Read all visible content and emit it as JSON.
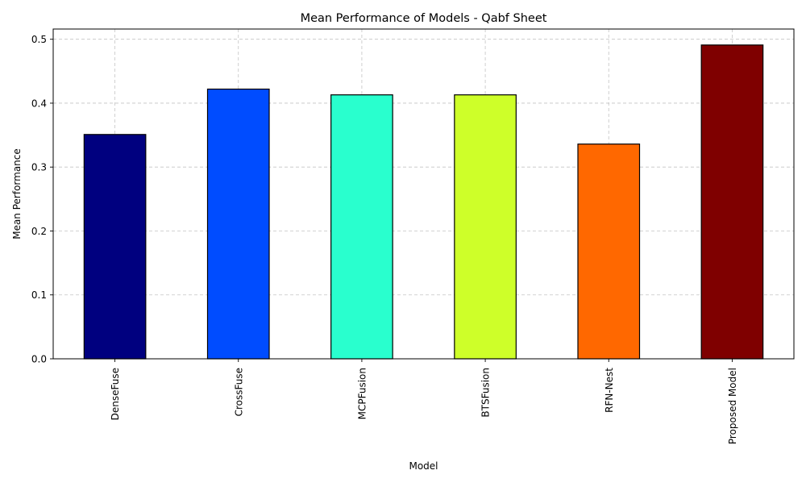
{
  "chart_data": {
    "type": "bar",
    "title": "Mean Performance of Models - Qabf Sheet",
    "xlabel": "Model",
    "ylabel": "Mean Performance",
    "categories": [
      "DenseFuse",
      "CrossFuse",
      "MCPFusion",
      "BTSFusion",
      "RFN-Nest",
      "Proposed Model"
    ],
    "values": [
      0.351,
      0.422,
      0.413,
      0.413,
      0.336,
      0.491
    ],
    "colors": [
      "#00007f",
      "#004cff",
      "#29ffce",
      "#ceff29",
      "#ff6800",
      "#7f0000"
    ],
    "ylim": [
      0,
      0.516
    ],
    "yticks": [
      0.0,
      0.1,
      0.2,
      0.3,
      0.4,
      0.5
    ],
    "ytick_labels": [
      "0.0",
      "0.1",
      "0.2",
      "0.3",
      "0.4",
      "0.5"
    ],
    "grid": true,
    "grid_style": "dashed",
    "bar_edge_color": "#000000",
    "xtick_rotation": "vertical"
  }
}
